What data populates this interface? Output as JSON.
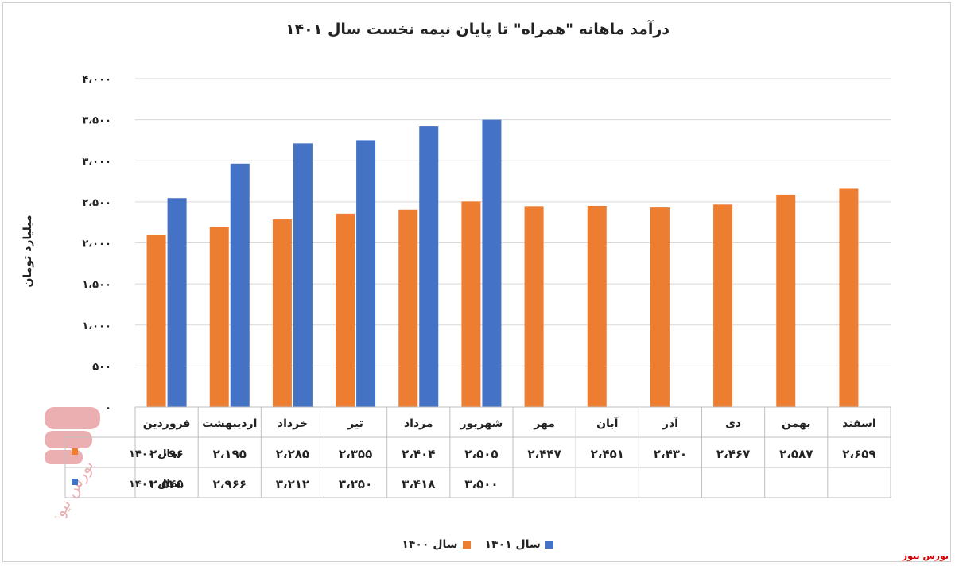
{
  "chart_data": {
    "type": "bar",
    "title": "درآمد ماهانه \"همراه\" تا پایان نیمه نخست سال ۱۴۰۱",
    "ylabel": "میلیارد تومان",
    "xlabel": "",
    "ylim": [
      0,
      4000
    ],
    "yticks": [
      0,
      500,
      1000,
      1500,
      2000,
      2500,
      3000,
      3500,
      4000
    ],
    "yticklabels": [
      "۰",
      "۵۰۰",
      "۱،۰۰۰",
      "۱،۵۰۰",
      "۲،۰۰۰",
      "۲،۵۰۰",
      "۳،۰۰۰",
      "۳،۵۰۰",
      "۴،۰۰۰"
    ],
    "grid": true,
    "legend": "bottom",
    "categories": [
      "فروردین",
      "اردیبهشت",
      "خرداد",
      "تیر",
      "مرداد",
      "شهریور",
      "مهر",
      "آبان",
      "آذر",
      "دی",
      "بهمن",
      "اسفند"
    ],
    "series": [
      {
        "name": "سال ۱۴۰۰",
        "color": "#ED7D31",
        "values": [
          2096,
          2195,
          2285,
          2355,
          2404,
          2505,
          2447,
          2451,
          2430,
          2467,
          2587,
          2659
        ],
        "labels": [
          "۲،۰۹۶",
          "۲،۱۹۵",
          "۲،۲۸۵",
          "۲،۳۵۵",
          "۲،۴۰۴",
          "۲،۵۰۵",
          "۲،۴۴۷",
          "۲،۴۵۱",
          "۲،۴۳۰",
          "۲،۴۶۷",
          "۲،۵۸۷",
          "۲،۶۵۹"
        ]
      },
      {
        "name": "سال ۱۴۰۱",
        "color": "#4472C4",
        "values": [
          2545,
          2966,
          3212,
          3250,
          3418,
          3500,
          null,
          null,
          null,
          null,
          null,
          null
        ],
        "labels": [
          "۲،۵۴۵",
          "۲،۹۶۶",
          "۳،۲۱۲",
          "۳،۲۵۰",
          "۳،۴۱۸",
          "۳،۵۰۰",
          "",
          "",
          "",
          "",
          "",
          ""
        ]
      }
    ]
  },
  "watermark_text": "بورس نیوز",
  "brand": "بورس نیوز"
}
